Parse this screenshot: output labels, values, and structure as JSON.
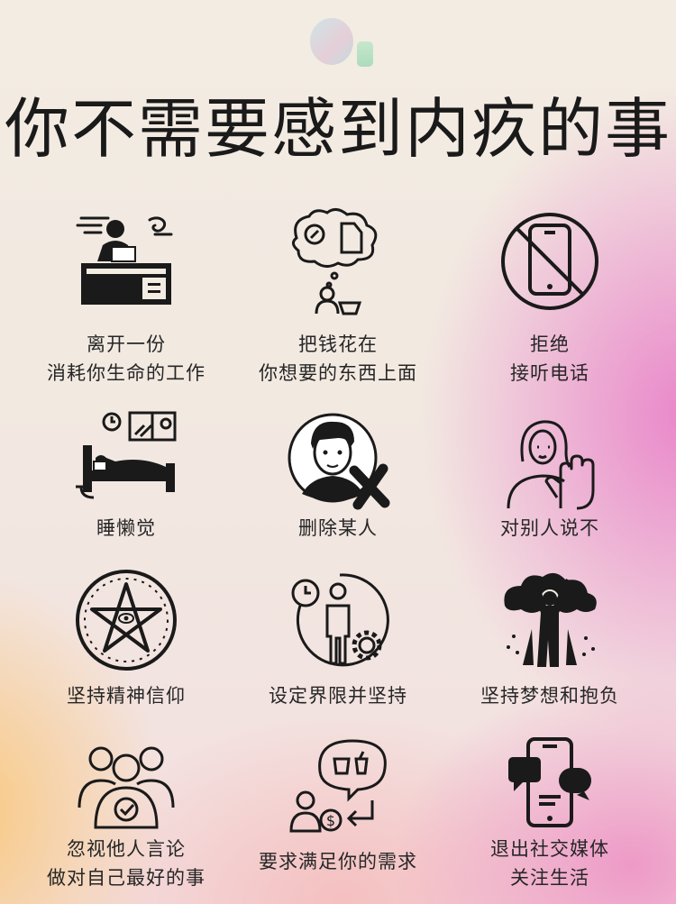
{
  "title": "你不需要感到内疚的事",
  "items": [
    {
      "icon": "desk-stress-icon",
      "line1": "离开一份",
      "line2": "消耗你生命的工作"
    },
    {
      "icon": "shopping-thought-icon",
      "line1": "把钱花在",
      "line2": "你想要的东西上面"
    },
    {
      "icon": "no-phone-icon",
      "line1": "拒绝",
      "line2": "接听电话"
    },
    {
      "icon": "sleep-bed-icon",
      "line1": "睡懒觉",
      "line2": ""
    },
    {
      "icon": "delete-person-icon",
      "line1": "删除某人",
      "line2": ""
    },
    {
      "icon": "stop-hand-icon",
      "line1": "对别人说不",
      "line2": ""
    },
    {
      "icon": "pentagram-icon",
      "line1": "坚持精神信仰",
      "line2": ""
    },
    {
      "icon": "boundary-person-icon",
      "line1": "设定界限并坚持",
      "line2": ""
    },
    {
      "icon": "dream-person-icon",
      "line1": "坚持梦想和抱负",
      "line2": ""
    },
    {
      "icon": "ignore-group-icon",
      "line1": "忽视他人言论",
      "line2": "做对自己最好的事"
    },
    {
      "icon": "needs-exchange-icon",
      "line1": "要求满足你的需求",
      "line2": ""
    },
    {
      "icon": "social-media-exit-icon",
      "line1": "退出社交媒体",
      "line2": "关注生活"
    }
  ]
}
